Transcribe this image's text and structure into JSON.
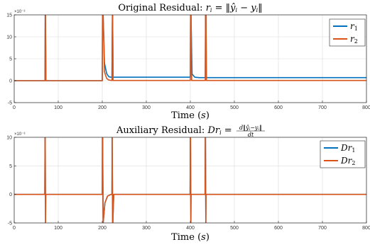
{
  "chart_data": [
    {
      "type": "line",
      "title": "Original Residual: r_i = ||ŷ_i − y_i||",
      "title_parts": [
        "Original Residual: ",
        "r",
        "i",
        " = ‖",
        "ŷ",
        "i",
        " − ",
        "y",
        "i",
        "‖"
      ],
      "xlabel": "Time (s)",
      "xlabel_parts": [
        "Time (",
        "s",
        ")"
      ],
      "ylabel": "",
      "y_exponent": "×10⁻³",
      "xlim": [
        0,
        800
      ],
      "ylim": [
        -5,
        15
      ],
      "xticks": [
        "0",
        "100",
        "200",
        "300",
        "400",
        "500",
        "600",
        "700",
        "800"
      ],
      "yticks": [
        "-5",
        "0",
        "5",
        "10",
        "15"
      ],
      "ytick_values": [
        -5,
        0,
        5,
        10,
        15
      ],
      "grid": true,
      "legend_position": "top-right",
      "series": [
        {
          "name": "r_1",
          "legend_main": "r",
          "legend_sub": "1",
          "color": "#0072BD",
          "x": [
            0,
            70,
            70.5,
            71,
            72,
            200,
            200.5,
            202,
            205,
            210,
            215,
            219,
            221,
            222,
            223,
            223.5,
            224.5,
            226,
            400,
            400.5,
            401.5,
            404,
            410,
            420,
            434,
            434.5,
            435.5,
            436.5,
            800
          ],
          "y": [
            0,
            0,
            15,
            15,
            0,
            0,
            15,
            15,
            4,
            1.6,
            0.9,
            0.8,
            0.8,
            0.8,
            15,
            15,
            0.8,
            0.8,
            0.8,
            15,
            15,
            1.5,
            0.8,
            0.7,
            0.7,
            15,
            15,
            0.7,
            0.7
          ]
        },
        {
          "name": "r_2",
          "legend_main": "r",
          "legend_sub": "2",
          "color": "#D95319",
          "x": [
            0,
            70,
            70.5,
            71,
            72,
            200,
            200.5,
            202,
            205,
            210,
            215,
            219,
            221,
            222,
            223,
            223.5,
            224.5,
            226,
            400,
            400.5,
            401.5,
            403,
            434,
            434.5,
            435.5,
            436.5,
            800
          ],
          "y": [
            0,
            0,
            15,
            15,
            0,
            0,
            15,
            15,
            2,
            0.5,
            0.15,
            0.08,
            0.05,
            0.05,
            15,
            15,
            0.05,
            0.05,
            0.05,
            15,
            15,
            0.05,
            0.05,
            15,
            15,
            0.05,
            0.05
          ]
        }
      ]
    },
    {
      "type": "line",
      "title": "Auxiliary Residual: Dr_i = d||ŷ_i − y_i|| / dt",
      "title_parts": [
        "Auxiliary Residual: ",
        "Dr",
        "i",
        " = "
      ],
      "frac_num": [
        "d‖",
        "ŷ",
        "i",
        "−",
        "y",
        "i",
        "‖"
      ],
      "frac_den": "dt",
      "xlabel": "Time (s)",
      "xlabel_parts": [
        "Time (",
        "s",
        ")"
      ],
      "ylabel": "",
      "y_exponent": "×10⁻³",
      "xlim": [
        0,
        800
      ],
      "ylim": [
        -5,
        10
      ],
      "xticks": [
        "0",
        "100",
        "200",
        "300",
        "400",
        "500",
        "600",
        "700",
        "800"
      ],
      "yticks": [
        "-5",
        "0",
        "5",
        "10"
      ],
      "ytick_values": [
        -5,
        0,
        5,
        10
      ],
      "grid": true,
      "legend_position": "top-right",
      "series": [
        {
          "name": "Dr_1",
          "legend_main": "Dr",
          "legend_sub": "1",
          "color": "#0072BD",
          "x": [
            0,
            69.5,
            70,
            70.4,
            71.2,
            71.6,
            200,
            200.3,
            200.8,
            202,
            206,
            212,
            220,
            222,
            222.5,
            223.5,
            224,
            226,
            399.5,
            400,
            400.4,
            401.2,
            401.6,
            433.5,
            434,
            434.4,
            435.2,
            435.6,
            800
          ],
          "y": [
            0,
            0,
            10,
            10,
            -5,
            0,
            0,
            10,
            10,
            -5,
            -1.5,
            -0.3,
            0,
            0,
            10,
            -5,
            -5,
            0,
            0,
            10,
            10,
            -5,
            0,
            0,
            10,
            10,
            -5,
            0,
            0
          ]
        },
        {
          "name": "Dr_2",
          "legend_main": "Dr",
          "legend_sub": "2",
          "color": "#D95319",
          "x": [
            0,
            69.5,
            70,
            70.4,
            71.2,
            71.6,
            200,
            200.3,
            200.8,
            202,
            206,
            212,
            220,
            222,
            222.5,
            223.5,
            224,
            226,
            399.5,
            400,
            400.4,
            401.2,
            401.6,
            433.5,
            434,
            434.4,
            435.2,
            435.6,
            800
          ],
          "y": [
            0,
            0,
            10,
            10,
            -5,
            0,
            0,
            10,
            10,
            -5,
            -1.5,
            -0.3,
            0,
            0,
            10,
            -5,
            -5,
            0,
            0,
            10,
            10,
            -5,
            0,
            0,
            10,
            10,
            -5,
            0,
            0
          ]
        }
      ]
    }
  ]
}
